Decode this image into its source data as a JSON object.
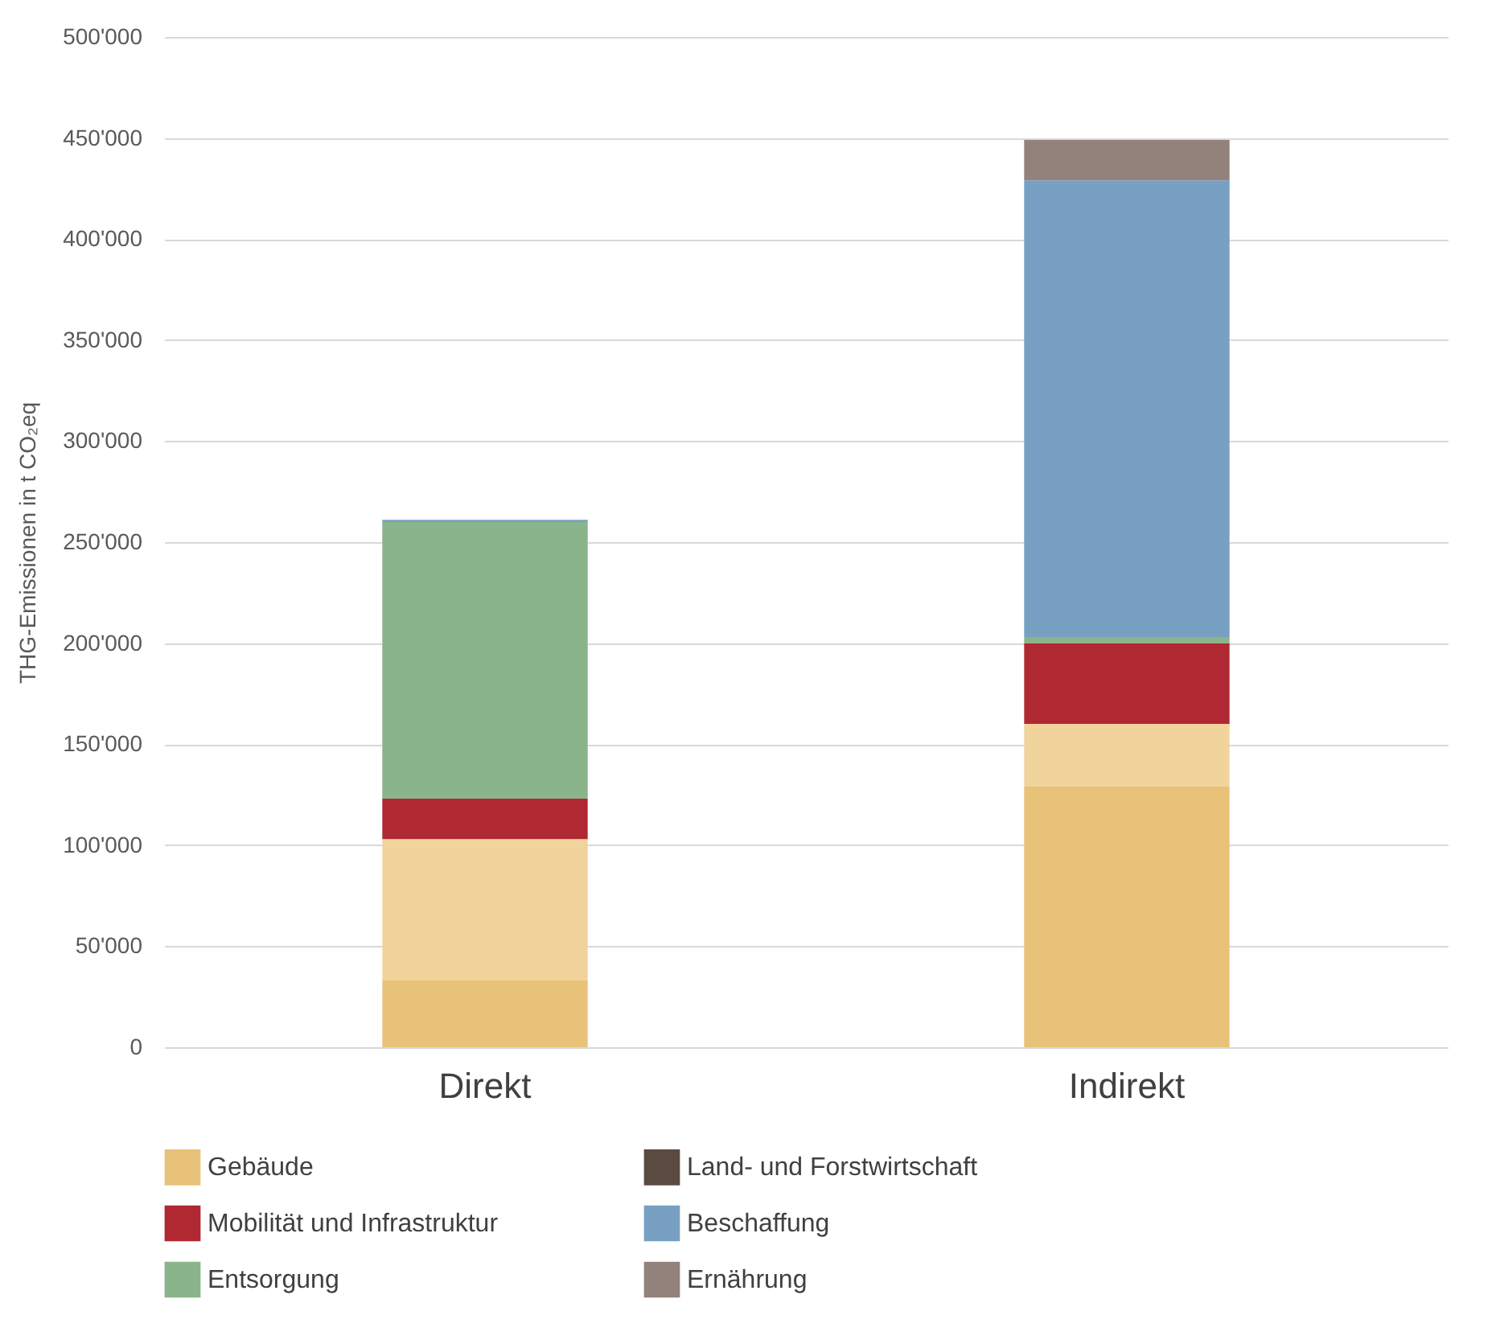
{
  "chart_data": {
    "type": "bar",
    "stacked": true,
    "ylabel": "THG-Emissionen in t CO₂eq",
    "categories": [
      "Direkt",
      "Indirekt"
    ],
    "series": [
      {
        "name": "Gebäude",
        "color": "#e9c27a",
        "values": [
          33000,
          129000
        ]
      },
      {
        "color": "#f0d49c",
        "values": [
          70000,
          31000
        ]
      },
      {
        "name": "Mobilität und Infrastruktur",
        "color": "#b02832",
        "values": [
          20000,
          40000
        ]
      },
      {
        "name": "Entsorgung",
        "color": "#8ab48a",
        "values": [
          137000,
          3000
        ]
      },
      {
        "name": "Land- und Forstwirtschaft",
        "color": "#5a4a40",
        "values": [
          0,
          0
        ]
      },
      {
        "name": "Beschaffung",
        "color": "#77a0c2",
        "values": [
          1000,
          226000
        ]
      },
      {
        "name": "Ernährung",
        "color": "#93827c",
        "values": [
          0,
          20000
        ]
      }
    ],
    "ylim": [
      0,
      500000
    ],
    "yticks": [
      0,
      {
        "value": 50000,
        "label": "50'000"
      },
      {
        "value": 100000,
        "label": "100'000"
      },
      {
        "value": 150000,
        "label": "150'000"
      },
      {
        "value": 200000,
        "label": "200'000"
      },
      {
        "value": 250000,
        "label": "250'000"
      },
      {
        "value": 300000,
        "label": "300'000"
      },
      {
        "value": 350000,
        "label": "350'000"
      },
      {
        "value": 400000,
        "label": "400'000"
      },
      {
        "value": 450000,
        "label": "450'000"
      },
      {
        "value": 500000,
        "label": "500'000"
      }
    ],
    "grid": true,
    "legend": "bottom"
  }
}
